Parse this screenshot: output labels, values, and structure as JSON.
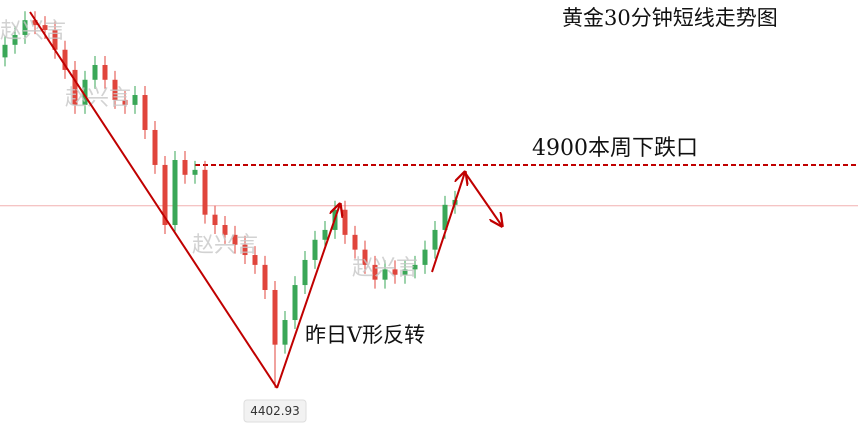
{
  "chart_data": {
    "type": "candlestick",
    "title": "黄金30分钟短线走势图",
    "annotations": [
      "4900本周下跌口",
      "昨日V形反转"
    ],
    "watermark": "赵兴言",
    "open": [
      5140,
      5168,
      5190,
      5223,
      5212,
      5201,
      5157,
      5112,
      5034,
      5090,
      5123,
      5090,
      5045,
      5034,
      5056,
      4978,
      4900,
      4766,
      4911,
      4878,
      4889,
      4789,
      4766,
      4744,
      4722,
      4699,
      4677,
      4621,
      4499,
      4554,
      4632,
      4688,
      4733,
      4755,
      4800,
      4744,
      4711,
      4677,
      4644,
      4667,
      4655,
      4667,
      4677,
      4711,
      4755,
      4811
    ],
    "high": [
      5188,
      5210,
      5243,
      5243,
      5232,
      5221,
      5177,
      5132,
      5110,
      5143,
      5143,
      5110,
      5065,
      5076,
      5076,
      4998,
      4920,
      4931,
      4931,
      4909,
      4909,
      4809,
      4786,
      4764,
      4742,
      4719,
      4697,
      4641,
      4574,
      4652,
      4708,
      4753,
      4775,
      4820,
      4820,
      4764,
      4731,
      4697,
      4687,
      4687,
      4687,
      4697,
      4731,
      4775,
      4831,
      4842
    ],
    "low": [
      5120,
      5148,
      5170,
      5192,
      5181,
      5137,
      5092,
      5014,
      5014,
      5070,
      5070,
      5025,
      5014,
      5014,
      4958,
      4880,
      4746,
      4746,
      4858,
      4858,
      4769,
      4746,
      4724,
      4702,
      4679,
      4657,
      4601,
      4402.93,
      4479,
      4534,
      4612,
      4668,
      4713,
      4735,
      4724,
      4691,
      4657,
      4624,
      4624,
      4635,
      4635,
      4647,
      4657,
      4691,
      4735,
      4791
    ],
    "close": [
      5168,
      5190,
      5223,
      5212,
      5201,
      5157,
      5112,
      5034,
      5090,
      5123,
      5090,
      5045,
      5034,
      5056,
      4978,
      4900,
      4766,
      4911,
      4878,
      4889,
      4789,
      4766,
      4744,
      4722,
      4699,
      4677,
      4621,
      4499,
      4554,
      4632,
      4688,
      4733,
      4755,
      4800,
      4744,
      4711,
      4677,
      4644,
      4667,
      4655,
      4667,
      4677,
      4711,
      4755,
      4811,
      4822
    ],
    "up_color": "#3aa757",
    "down_color": "#e0453c",
    "hlines": [
      {
        "value": 4900,
        "dashed": true,
        "color": "#c00000"
      },
      {
        "value": 4809,
        "dashed": false,
        "color": "#f2b0b0"
      }
    ],
    "ylim": [
      4322,
      5268
    ]
  }
}
